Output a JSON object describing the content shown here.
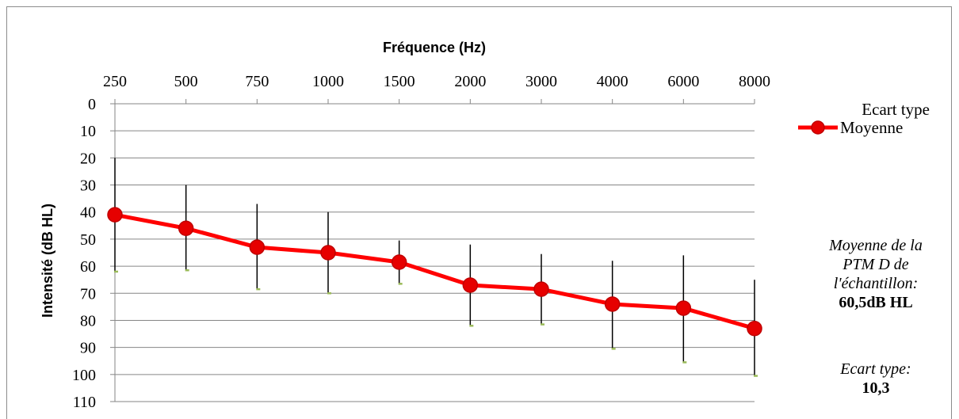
{
  "chart_data": {
    "type": "line",
    "xlabel": "Fréquence (Hz)",
    "ylabel": "Intensité (dB HL)",
    "categories": [
      "250",
      "500",
      "750",
      "1000",
      "1500",
      "2000",
      "3000",
      "4000",
      "6000",
      "8000"
    ],
    "yticks": [
      "0",
      "10",
      "20",
      "30",
      "40",
      "50",
      "60",
      "70",
      "80",
      "90",
      "100",
      "110"
    ],
    "ylim": [
      0,
      110
    ],
    "y_inverted": true,
    "x_axis_position": "top",
    "grid": "horizontal",
    "series": [
      {
        "name": "Moyenne",
        "values": [
          41,
          46,
          53,
          55,
          58.5,
          67,
          68.5,
          74,
          75.5,
          83
        ],
        "error_upper": [
          20,
          30,
          37,
          40,
          50.5,
          52,
          55.5,
          58,
          56,
          65
        ],
        "error_lower": [
          62,
          61.5,
          68.5,
          70,
          66.5,
          82,
          81.5,
          90.5,
          95.5,
          100.5
        ],
        "color": "#ff0000",
        "marker_color": "#e60000"
      }
    ],
    "legend": {
      "placement": "right",
      "entries": [
        "Ecart type",
        "Moyenne"
      ]
    }
  },
  "notes": {
    "mean_label_line1": "Moyenne de la",
    "mean_label_line2": "PTM D de",
    "mean_label_line3": "l'échantillon:",
    "mean_value": "60,5dB HL",
    "sd_label": "Ecart type:",
    "sd_value": "10,3"
  },
  "colors": {
    "grid": "#868686",
    "error_bar": "#000000",
    "error_cap": "#9bbb59",
    "line": "#ff0000"
  }
}
